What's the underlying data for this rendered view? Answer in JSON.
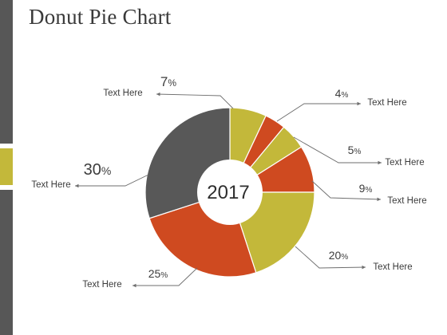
{
  "page": {
    "title": "Donut Pie Chart"
  },
  "colors": {
    "olive": "#c3b83a",
    "orange": "#cf4a20",
    "gray": "#585858",
    "sidebar": "#575757",
    "text": "#3c3c3c"
  },
  "chart_data": {
    "type": "pie",
    "title": "Donut Pie Chart",
    "center_label": "2017",
    "slices": [
      {
        "label": "Text Here",
        "value": 7,
        "pct_text": "7",
        "color": "#c3b83a"
      },
      {
        "label": "Text Here",
        "value": 4,
        "pct_text": "4",
        "color": "#cf4a20"
      },
      {
        "label": "Text Here",
        "value": 5,
        "pct_text": "5",
        "color": "#c3b83a"
      },
      {
        "label": "Text Here",
        "value": 9,
        "pct_text": "9",
        "color": "#cf4a20"
      },
      {
        "label": "Text Here",
        "value": 20,
        "pct_text": "20",
        "color": "#c3b83a"
      },
      {
        "label": "Text Here",
        "value": 25,
        "pct_text": "25",
        "color": "#cf4a20"
      },
      {
        "label": "Text Here",
        "value": 30,
        "pct_text": "30",
        "color": "#585858"
      }
    ],
    "percent_sign": "%"
  }
}
